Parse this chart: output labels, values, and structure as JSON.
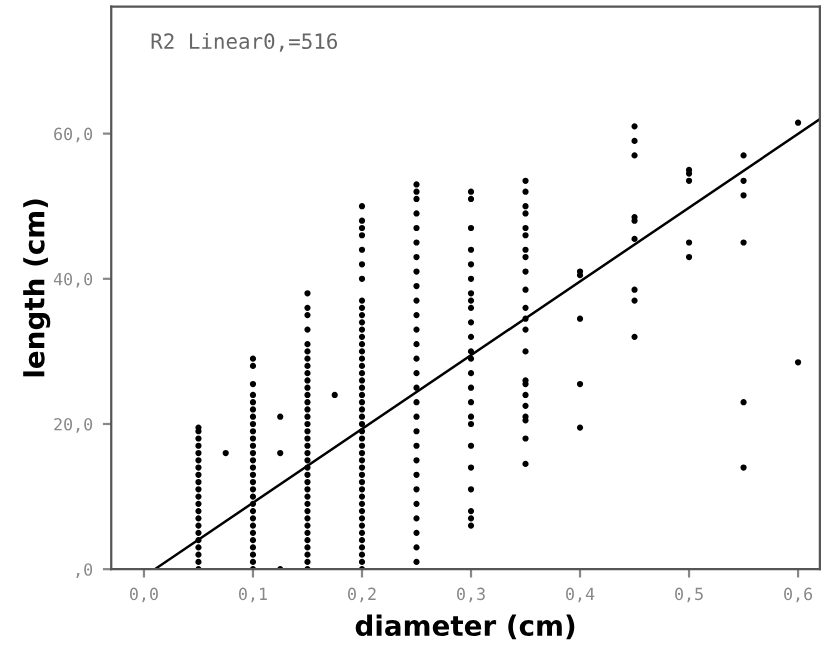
{
  "chart_data": {
    "type": "scatter",
    "xlabel": "diameter (cm)",
    "ylabel": "length (cm)",
    "annotations": [
      "R2 Linear0,=516"
    ],
    "xlim": [
      -0.03,
      0.62
    ],
    "ylim": [
      0,
      77.5
    ],
    "xticks": [
      {
        "value": 0,
        "label": "0,0"
      },
      {
        "value": 0.1,
        "label": "0,1"
      },
      {
        "value": 0.2,
        "label": "0,2"
      },
      {
        "value": 0.3,
        "label": "0,3"
      },
      {
        "value": 0.4,
        "label": "0,4"
      },
      {
        "value": 0.5,
        "label": "0,5"
      },
      {
        "value": 0.6,
        "label": "0,6"
      }
    ],
    "yticks": [
      {
        "value": 0,
        "label": ",0"
      },
      {
        "value": 20,
        "label": "20,0"
      },
      {
        "value": 40,
        "label": "40,0"
      },
      {
        "value": 60,
        "label": "60,0"
      }
    ],
    "grid": false,
    "legend": false,
    "marker": "circle",
    "series": [
      {
        "color": "#000000",
        "x": [
          0.05,
          0.05,
          0.05,
          0.05,
          0.05,
          0.05,
          0.05,
          0.05,
          0.05,
          0.05,
          0.05,
          0.05,
          0.05,
          0.05,
          0.05,
          0.05,
          0.05,
          0.05,
          0.05,
          0.05,
          0.05,
          0.075,
          0.1,
          0.1,
          0.1,
          0.1,
          0.1,
          0.1,
          0.1,
          0.1,
          0.1,
          0.1,
          0.1,
          0.1,
          0.1,
          0.1,
          0.1,
          0.1,
          0.1,
          0.1,
          0.1,
          0.1,
          0.1,
          0.1,
          0.1,
          0.1,
          0.1,
          0.1,
          0.1,
          0.1,
          0.125,
          0.125,
          0.125,
          0.15,
          0.15,
          0.15,
          0.15,
          0.15,
          0.15,
          0.15,
          0.15,
          0.15,
          0.15,
          0.15,
          0.15,
          0.15,
          0.15,
          0.15,
          0.15,
          0.15,
          0.15,
          0.15,
          0.15,
          0.15,
          0.15,
          0.15,
          0.15,
          0.15,
          0.15,
          0.15,
          0.15,
          0.15,
          0.15,
          0.15,
          0.15,
          0.15,
          0.15,
          0.15,
          0.15,
          0.175,
          0.2,
          0.2,
          0.2,
          0.2,
          0.2,
          0.2,
          0.2,
          0.2,
          0.2,
          0.2,
          0.2,
          0.2,
          0.2,
          0.2,
          0.2,
          0.2,
          0.2,
          0.2,
          0.2,
          0.2,
          0.2,
          0.2,
          0.2,
          0.2,
          0.2,
          0.2,
          0.2,
          0.2,
          0.2,
          0.2,
          0.2,
          0.2,
          0.2,
          0.2,
          0.2,
          0.2,
          0.2,
          0.2,
          0.2,
          0.2,
          0.2,
          0.2,
          0.2,
          0.2,
          0.2,
          0.25,
          0.25,
          0.25,
          0.25,
          0.25,
          0.25,
          0.25,
          0.25,
          0.25,
          0.25,
          0.25,
          0.25,
          0.25,
          0.25,
          0.25,
          0.25,
          0.25,
          0.25,
          0.25,
          0.25,
          0.25,
          0.25,
          0.25,
          0.25,
          0.25,
          0.25,
          0.25,
          0.25,
          0.3,
          0.3,
          0.3,
          0.3,
          0.3,
          0.3,
          0.3,
          0.3,
          0.3,
          0.3,
          0.3,
          0.3,
          0.3,
          0.3,
          0.3,
          0.3,
          0.3,
          0.3,
          0.3,
          0.3,
          0.3,
          0.3,
          0.3,
          0.3,
          0.35,
          0.35,
          0.35,
          0.35,
          0.35,
          0.35,
          0.35,
          0.35,
          0.35,
          0.35,
          0.35,
          0.35,
          0.35,
          0.35,
          0.35,
          0.35,
          0.35,
          0.35,
          0.35,
          0.35,
          0.35,
          0.35,
          0.4,
          0.4,
          0.4,
          0.4,
          0.4,
          0.45,
          0.45,
          0.45,
          0.45,
          0.45,
          0.45,
          0.45,
          0.45,
          0.45,
          0.5,
          0.5,
          0.5,
          0.5,
          0.5,
          0.55,
          0.55,
          0.55,
          0.55,
          0.55,
          0.55,
          0.6,
          0.6
        ],
        "values": [
          0,
          1,
          2,
          3,
          4,
          5,
          6,
          7,
          8,
          9,
          10,
          11,
          12,
          13,
          14,
          15,
          16,
          17,
          18,
          19,
          19.5,
          16,
          0,
          1,
          2,
          3,
          4,
          5,
          6,
          7,
          8,
          9,
          10,
          11,
          12,
          13,
          14,
          15,
          16,
          17,
          18,
          19,
          20,
          21,
          22,
          23,
          24,
          25.5,
          28,
          29,
          0,
          16,
          21,
          0,
          1,
          2,
          3,
          4,
          5,
          6,
          7,
          8,
          9,
          10,
          11,
          12,
          13,
          14,
          15,
          16,
          17,
          18,
          19,
          20,
          21,
          22,
          23,
          24,
          25,
          26,
          27,
          28,
          29,
          30,
          31,
          33,
          35,
          36,
          38,
          24,
          0,
          1,
          2,
          3,
          4,
          5,
          6,
          7,
          8,
          9,
          10,
          11,
          12,
          13,
          14,
          15,
          16,
          17,
          18,
          19,
          20,
          21,
          22,
          23,
          24,
          25,
          26,
          27,
          28,
          29,
          30,
          31,
          32,
          33,
          34,
          35,
          36,
          37,
          40,
          42,
          44,
          46,
          47,
          48,
          50,
          1,
          3,
          5,
          7,
          9,
          11,
          13,
          15,
          17,
          19,
          21,
          23,
          25,
          27,
          29,
          31,
          33,
          35,
          37,
          39,
          41,
          43,
          45,
          47,
          49,
          51,
          52,
          53,
          6,
          7,
          8,
          11,
          14,
          17,
          20,
          21,
          23,
          25,
          27,
          29,
          30,
          32,
          34,
          36,
          37,
          38,
          40,
          42,
          44,
          47,
          51,
          52,
          14.5,
          18,
          20.5,
          21,
          22.5,
          24,
          25.5,
          26,
          30,
          33,
          34.5,
          36,
          38.5,
          41,
          43,
          44,
          46,
          47,
          49,
          50,
          52,
          53.5,
          19.5,
          25.5,
          34.5,
          40.5,
          41,
          32,
          37,
          38.5,
          45.5,
          48,
          48.5,
          57,
          59,
          61,
          43,
          45,
          53.5,
          54.5,
          55,
          14,
          23,
          45,
          51.5,
          53.5,
          57,
          28.5,
          61.5
        ]
      },
      {
        "type": "line",
        "color": "#000000",
        "marker": "none",
        "x": [
          0.01,
          0.62
        ],
        "values": [
          0,
          62
        ]
      }
    ]
  }
}
